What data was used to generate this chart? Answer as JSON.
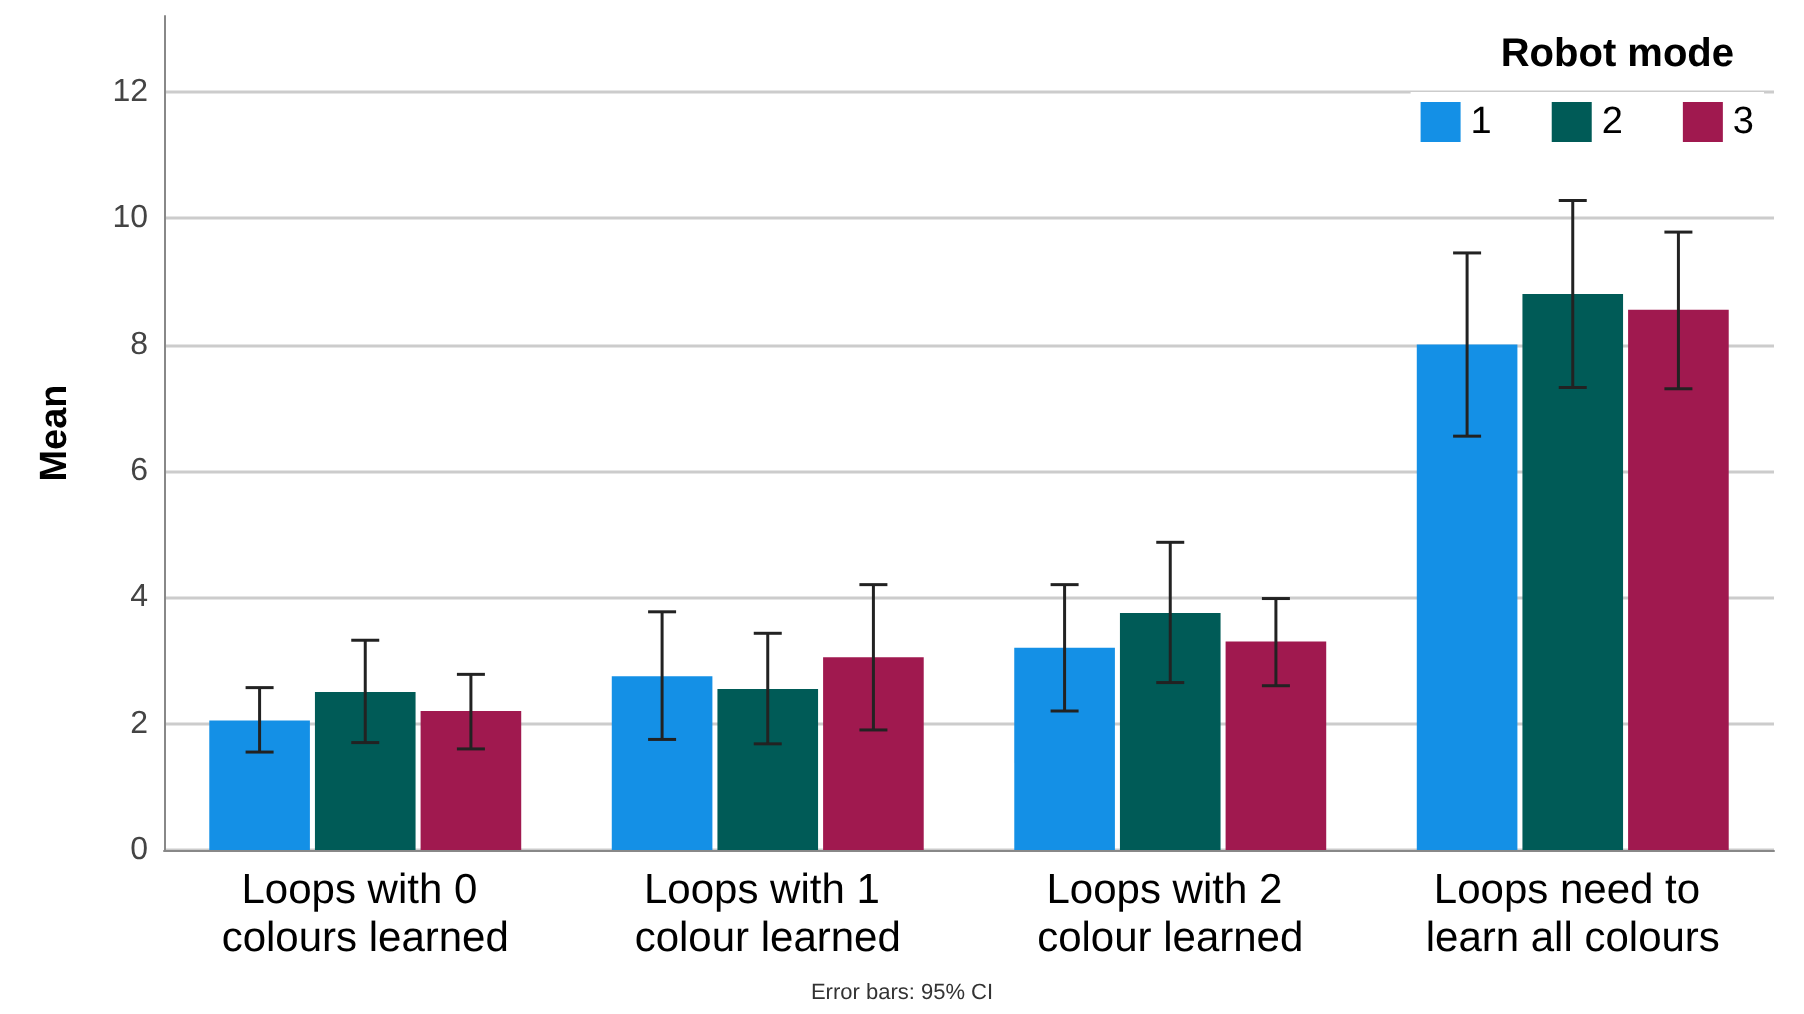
{
  "chart_data": {
    "type": "bar",
    "ylabel": "Mean",
    "legend_title": "Robot mode",
    "legend": "top right",
    "grid": "y",
    "categories": [
      "Loops with 0 colours learned",
      "Loops with 1 colour learned",
      "Loops with 2 colour learned",
      "Loops need to learn all colours"
    ],
    "ylim": [
      0,
      13.2
    ],
    "yticks": [
      0,
      2,
      4,
      6,
      8,
      10,
      12
    ],
    "series": [
      {
        "name": "1",
        "color": "#1490e6",
        "values": [
          2.05,
          2.75,
          3.2,
          8.0
        ],
        "errors": [
          [
            1.55,
            2.57
          ],
          [
            1.75,
            3.77
          ],
          [
            2.2,
            4.2
          ],
          [
            6.55,
            9.45
          ]
        ]
      },
      {
        "name": "2",
        "color": "#005b57",
        "values": [
          2.5,
          2.55,
          3.75,
          8.8
        ],
        "errors": [
          [
            1.7,
            3.32
          ],
          [
            1.68,
            3.43
          ],
          [
            2.65,
            4.87
          ],
          [
            7.32,
            10.28
          ]
        ]
      },
      {
        "name": "3",
        "color": "#a0194f",
        "values": [
          2.2,
          3.05,
          3.3,
          8.55
        ],
        "errors": [
          [
            1.6,
            2.78
          ],
          [
            1.9,
            4.2
          ],
          [
            2.6,
            3.98
          ],
          [
            7.3,
            9.78
          ]
        ]
      }
    ],
    "annotations": [
      "Error bars: 95% CI"
    ]
  }
}
